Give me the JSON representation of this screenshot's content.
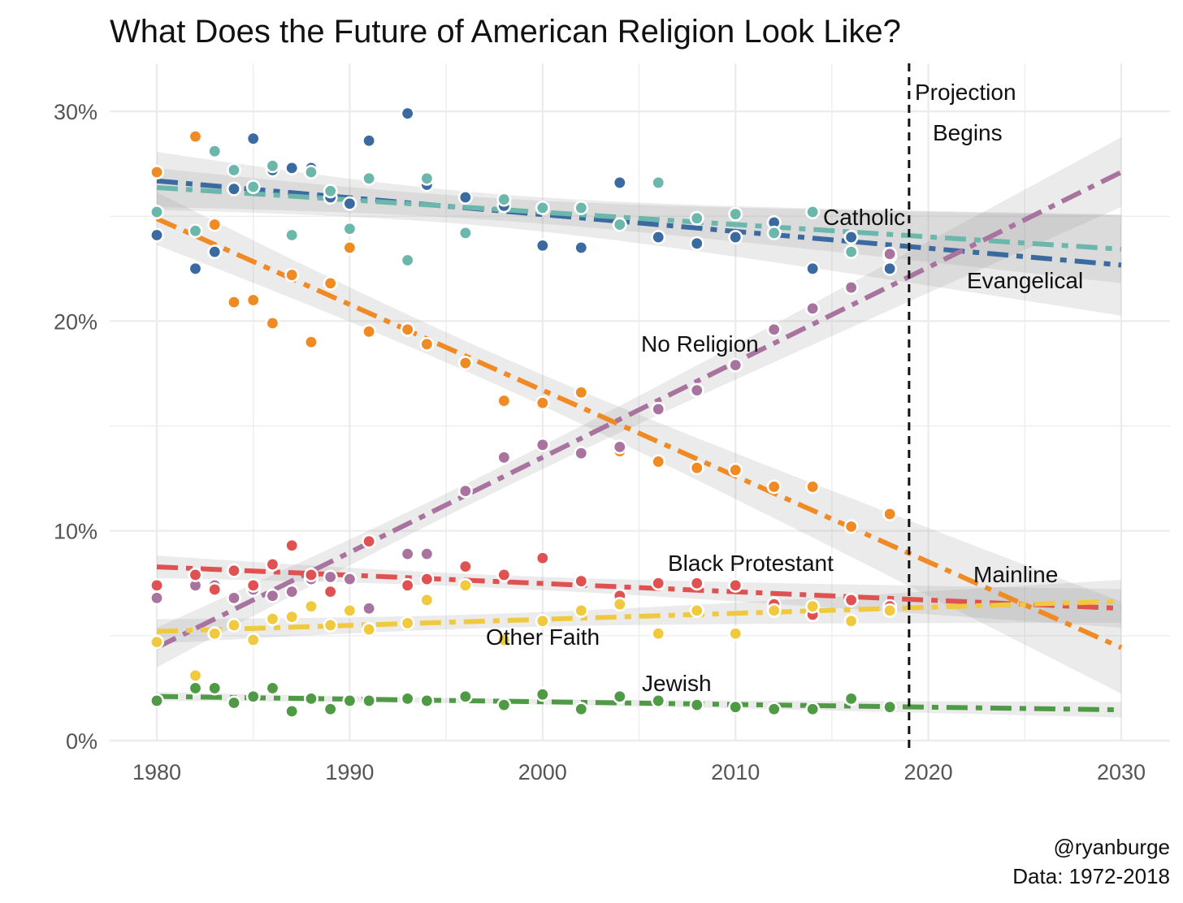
{
  "chart_data": {
    "type": "scatter",
    "title": "What Does the Future of American Religion Look Like?",
    "xlabel": "",
    "ylabel": "",
    "xlim": [
      1977.5,
      2032.5
    ],
    "ylim": [
      0,
      32
    ],
    "x_ticks": [
      "1980",
      "1990",
      "2000",
      "2010",
      "2020",
      "2030"
    ],
    "y_ticks": [
      "0%",
      "10%",
      "20%",
      "30%"
    ],
    "grid": true,
    "trend": "linear fit with confidence band, extended to 2030",
    "projection_line": {
      "x": 2019,
      "label_line1": "Projection",
      "label_line2": "Begins"
    },
    "caption_line1": "@ryanburge",
    "caption_line2": "Data: 1972-2018",
    "x": [
      1980,
      1982,
      1983,
      1984,
      1985,
      1986,
      1987,
      1988,
      1989,
      1990,
      1991,
      1993,
      1994,
      1996,
      1998,
      2000,
      2002,
      2004,
      2006,
      2008,
      2010,
      2012,
      2014,
      2016,
      2018
    ],
    "series": [
      {
        "name": "Evangelical",
        "color": "#3b6aa0",
        "values": [
          24.1,
          22.5,
          23.3,
          26.3,
          28.7,
          27.2,
          27.3,
          27.3,
          25.9,
          25.6,
          28.6,
          29.9,
          26.5,
          25.9,
          25.5,
          23.6,
          23.5,
          26.6,
          24.0,
          23.7,
          24.0,
          24.7,
          22.5,
          24.0,
          22.5
        ]
      },
      {
        "name": "Catholic",
        "color": "#6cb7ac",
        "values": [
          25.2,
          24.3,
          28.1,
          27.2,
          26.4,
          27.4,
          24.1,
          27.1,
          26.2,
          24.4,
          26.8,
          22.9,
          26.8,
          24.2,
          25.8,
          25.4,
          25.4,
          24.6,
          26.6,
          24.9,
          25.1,
          24.2,
          25.2,
          23.3,
          23.1
        ]
      },
      {
        "name": "Mainline",
        "color": "#f08a24",
        "values": [
          27.1,
          28.8,
          24.6,
          20.9,
          21.0,
          19.9,
          22.2,
          19.0,
          21.8,
          23.5,
          19.5,
          19.6,
          18.9,
          18.0,
          16.2,
          16.1,
          16.6,
          13.8,
          13.3,
          13.0,
          12.9,
          12.1,
          12.1,
          10.2,
          10.8
        ]
      },
      {
        "name": "No Religion",
        "color": "#a8739f",
        "values": [
          6.8,
          7.4,
          7.4,
          6.8,
          7.2,
          6.9,
          7.1,
          7.7,
          7.8,
          7.7,
          6.3,
          8.9,
          8.9,
          11.9,
          13.5,
          14.1,
          13.7,
          14.0,
          15.8,
          16.7,
          17.9,
          19.6,
          20.6,
          21.6,
          23.2
        ]
      },
      {
        "name": "Black Protestant",
        "color": "#e05252",
        "values": [
          7.4,
          7.9,
          7.2,
          8.1,
          7.4,
          8.4,
          9.3,
          7.9,
          7.1,
          null,
          9.5,
          7.4,
          7.7,
          8.3,
          7.9,
          8.7,
          7.6,
          6.9,
          7.5,
          7.5,
          7.4,
          6.5,
          6.0,
          6.7,
          6.4
        ]
      },
      {
        "name": "Other Faith",
        "color": "#f0c93f",
        "values": [
          4.7,
          3.1,
          5.1,
          5.5,
          4.8,
          5.8,
          5.9,
          6.4,
          5.5,
          6.2,
          5.3,
          5.6,
          6.7,
          7.4,
          4.8,
          5.7,
          6.2,
          6.5,
          5.1,
          6.2,
          5.1,
          6.2,
          6.4,
          5.7,
          6.2
        ]
      },
      {
        "name": "Jewish",
        "color": "#4f9a45",
        "values": [
          1.9,
          2.5,
          2.5,
          1.8,
          2.1,
          2.5,
          1.4,
          2.0,
          1.5,
          1.9,
          1.9,
          2.0,
          1.9,
          2.1,
          1.7,
          2.2,
          1.5,
          2.1,
          1.9,
          1.7,
          1.6,
          1.5,
          1.5,
          2.0,
          1.6
        ]
      }
    ]
  }
}
